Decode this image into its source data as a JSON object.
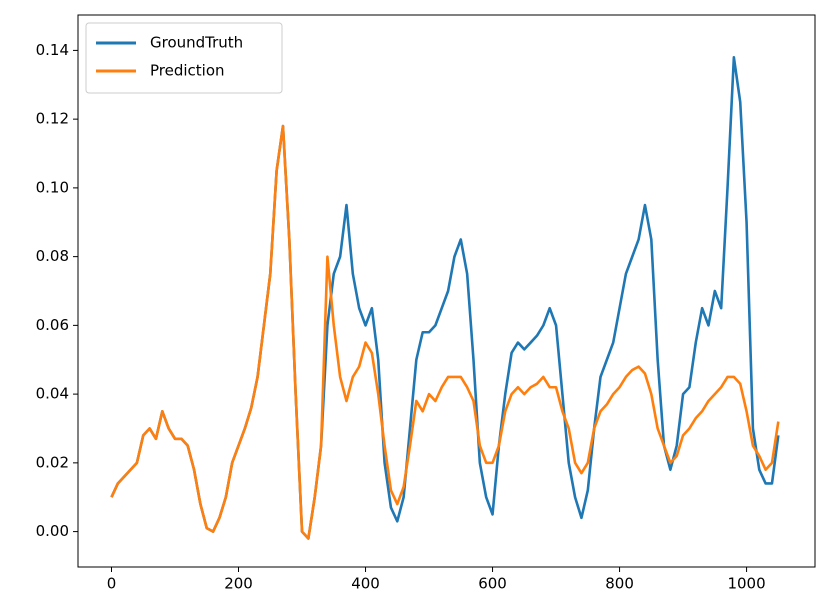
{
  "chart_data": {
    "type": "line",
    "x": [
      0,
      10,
      20,
      30,
      40,
      50,
      60,
      70,
      80,
      90,
      100,
      110,
      120,
      130,
      140,
      150,
      160,
      170,
      180,
      190,
      200,
      210,
      220,
      230,
      240,
      250,
      260,
      270,
      280,
      290,
      300,
      310,
      320,
      330,
      340,
      350,
      360,
      370,
      380,
      390,
      400,
      410,
      420,
      430,
      440,
      450,
      460,
      470,
      480,
      490,
      500,
      510,
      520,
      530,
      540,
      550,
      560,
      570,
      580,
      590,
      600,
      610,
      620,
      630,
      640,
      650,
      660,
      670,
      680,
      690,
      700,
      710,
      720,
      730,
      740,
      750,
      760,
      770,
      780,
      790,
      800,
      810,
      820,
      830,
      840,
      850,
      860,
      870,
      880,
      890,
      900,
      910,
      920,
      930,
      940,
      950,
      960,
      970,
      980,
      990,
      1000,
      1010,
      1020,
      1030,
      1040,
      1050
    ],
    "series": [
      {
        "name": "GroundTruth",
        "color": "#1f77b4",
        "values": [
          0.01,
          0.014,
          0.016,
          0.018,
          0.02,
          0.028,
          0.03,
          0.027,
          0.035,
          0.03,
          0.027,
          0.027,
          0.025,
          0.018,
          0.008,
          0.001,
          0.0,
          0.004,
          0.01,
          0.02,
          0.025,
          0.03,
          0.036,
          0.045,
          0.06,
          0.075,
          0.105,
          0.118,
          0.085,
          0.04,
          0.0,
          -0.002,
          0.01,
          0.025,
          0.06,
          0.075,
          0.08,
          0.095,
          0.075,
          0.065,
          0.06,
          0.065,
          0.05,
          0.02,
          0.007,
          0.003,
          0.01,
          0.03,
          0.05,
          0.058,
          0.058,
          0.06,
          0.065,
          0.07,
          0.08,
          0.085,
          0.075,
          0.05,
          0.02,
          0.01,
          0.005,
          0.025,
          0.04,
          0.052,
          0.055,
          0.053,
          0.055,
          0.057,
          0.06,
          0.065,
          0.06,
          0.04,
          0.02,
          0.01,
          0.004,
          0.012,
          0.03,
          0.045,
          0.05,
          0.055,
          0.065,
          0.075,
          0.08,
          0.085,
          0.095,
          0.085,
          0.05,
          0.025,
          0.018,
          0.025,
          0.04,
          0.042,
          0.055,
          0.065,
          0.06,
          0.07,
          0.065,
          0.1,
          0.138,
          0.125,
          0.09,
          0.03,
          0.018,
          0.014,
          0.014,
          0.028
        ]
      },
      {
        "name": "Prediction",
        "color": "#ff7f0e",
        "values": [
          0.01,
          0.014,
          0.016,
          0.018,
          0.02,
          0.028,
          0.03,
          0.027,
          0.035,
          0.03,
          0.027,
          0.027,
          0.025,
          0.018,
          0.008,
          0.001,
          0.0,
          0.004,
          0.01,
          0.02,
          0.025,
          0.03,
          0.036,
          0.045,
          0.06,
          0.075,
          0.105,
          0.118,
          0.085,
          0.04,
          0.0,
          -0.002,
          0.01,
          0.025,
          0.08,
          0.06,
          0.045,
          0.038,
          0.045,
          0.048,
          0.055,
          0.052,
          0.04,
          0.025,
          0.012,
          0.008,
          0.013,
          0.025,
          0.038,
          0.035,
          0.04,
          0.038,
          0.042,
          0.045,
          0.045,
          0.045,
          0.042,
          0.038,
          0.025,
          0.02,
          0.02,
          0.025,
          0.035,
          0.04,
          0.042,
          0.04,
          0.042,
          0.043,
          0.045,
          0.042,
          0.042,
          0.035,
          0.03,
          0.02,
          0.017,
          0.02,
          0.03,
          0.035,
          0.037,
          0.04,
          0.042,
          0.045,
          0.047,
          0.048,
          0.046,
          0.04,
          0.03,
          0.025,
          0.02,
          0.022,
          0.028,
          0.03,
          0.033,
          0.035,
          0.038,
          0.04,
          0.042,
          0.045,
          0.045,
          0.043,
          0.035,
          0.025,
          0.022,
          0.018,
          0.02,
          0.032
        ]
      }
    ],
    "xlim": [
      -52.75,
      1107.75
    ],
    "xticks": [
      0,
      200,
      400,
      600,
      800,
      1000
    ],
    "ylim": [
      -0.0103,
      0.1503
    ],
    "yticks": [
      {
        "value": 0,
        "label": "0.00"
      },
      {
        "value": 0.02,
        "label": "0.02"
      },
      {
        "value": 0.04,
        "label": "0.04"
      },
      {
        "value": 0.06,
        "label": "0.06"
      },
      {
        "value": 0.08,
        "label": "0.08"
      },
      {
        "value": 0.1,
        "label": "0.10"
      },
      {
        "value": 0.12,
        "label": "0.12"
      },
      {
        "value": 0.14,
        "label": "0.14"
      }
    ],
    "legend": "upper left"
  }
}
